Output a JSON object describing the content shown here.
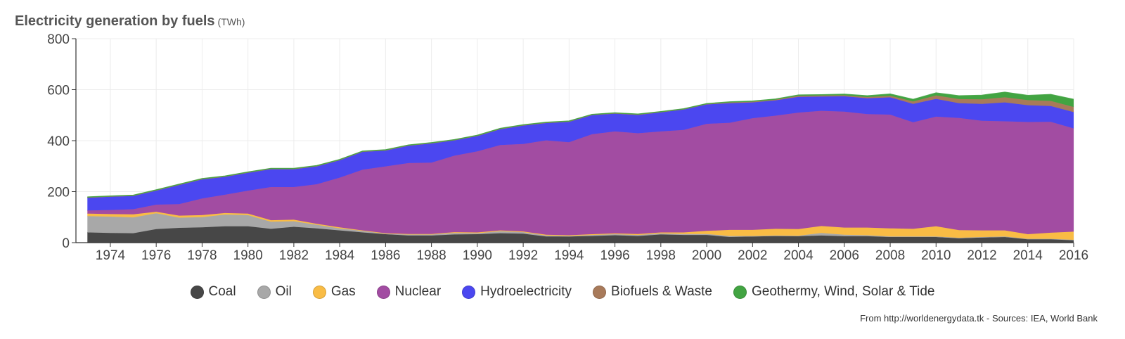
{
  "title": "Electricity generation by fuels",
  "unit": "(TWh)",
  "source": "From http://worldenergydata.tk - Sources: IEA, World Bank",
  "chart_data": {
    "type": "area",
    "stacked": true,
    "x": [
      1973,
      1974,
      1975,
      1976,
      1977,
      1978,
      1979,
      1980,
      1981,
      1982,
      1983,
      1984,
      1985,
      1986,
      1987,
      1988,
      1989,
      1990,
      1991,
      1992,
      1993,
      1994,
      1995,
      1996,
      1997,
      1998,
      1999,
      2000,
      2001,
      2002,
      2003,
      2004,
      2005,
      2006,
      2007,
      2008,
      2009,
      2010,
      2011,
      2012,
      2013,
      2014,
      2015,
      2016
    ],
    "xlim": [
      1972.5,
      2016
    ],
    "ylim": [
      0,
      800
    ],
    "yticks": [
      0,
      200,
      400,
      600,
      800
    ],
    "xticks": [
      1974,
      1976,
      1978,
      1980,
      1982,
      1984,
      1986,
      1988,
      1990,
      1992,
      1994,
      1996,
      1998,
      2000,
      2002,
      2004,
      2006,
      2008,
      2010,
      2012,
      2014,
      2016
    ],
    "grid": true,
    "legend_position": "bottom",
    "series": [
      {
        "name": "Coal",
        "color": "#474747",
        "values": [
          40,
          38,
          37,
          53,
          58,
          60,
          64,
          64,
          54,
          62,
          56,
          48,
          40,
          33,
          28,
          28,
          32,
          33,
          37,
          35,
          24,
          24,
          26,
          29,
          26,
          32,
          30,
          30,
          22,
          24,
          26,
          25,
          28,
          25,
          25,
          22,
          22,
          22,
          17,
          20,
          22,
          14,
          14,
          10
        ]
      },
      {
        "name": "Oil",
        "color": "#a8a8a8",
        "values": [
          64,
          64,
          62,
          62,
          40,
          40,
          46,
          44,
          28,
          22,
          14,
          8,
          6,
          2,
          4,
          4,
          6,
          4,
          8,
          6,
          4,
          2,
          4,
          4,
          4,
          4,
          4,
          4,
          4,
          2,
          2,
          2,
          10,
          6,
          4,
          2,
          2,
          2,
          2,
          2,
          2,
          1,
          1,
          1
        ]
      },
      {
        "name": "Gas",
        "color": "#f9bc45",
        "values": [
          10,
          10,
          12,
          6,
          8,
          8,
          6,
          6,
          6,
          6,
          4,
          4,
          2,
          2,
          2,
          2,
          3,
          3,
          3,
          3,
          3,
          3,
          3,
          3,
          4,
          4,
          6,
          12,
          24,
          24,
          26,
          26,
          27,
          28,
          30,
          32,
          30,
          40,
          30,
          26,
          24,
          18,
          24,
          32
        ]
      },
      {
        "name": "Nuclear",
        "color": "#a24ca2",
        "values": [
          12,
          16,
          20,
          28,
          45,
          65,
          72,
          90,
          130,
          128,
          155,
          195,
          238,
          262,
          278,
          280,
          300,
          318,
          335,
          343,
          370,
          365,
          392,
          400,
          395,
          396,
          402,
          420,
          420,
          438,
          444,
          457,
          452,
          455,
          445,
          446,
          418,
          430,
          440,
          430,
          428,
          440,
          435,
          405
        ]
      },
      {
        "name": "Hydroelectricity",
        "color": "#4b47f0",
        "values": [
          50,
          52,
          52,
          55,
          75,
          75,
          70,
          70,
          70,
          70,
          70,
          68,
          70,
          62,
          68,
          75,
          60,
          60,
          62,
          72,
          68,
          80,
          75,
          70,
          72,
          75,
          80,
          76,
          77,
          62,
          60,
          62,
          56,
          60,
          62,
          68,
          72,
          70,
          58,
          66,
          74,
          66,
          62,
          64
        ]
      },
      {
        "name": "Biofuels & Waste",
        "color": "#a87a5a",
        "values": [
          2,
          2,
          2,
          2,
          2,
          2,
          2,
          2,
          2,
          2,
          2,
          2,
          2,
          2,
          2,
          2,
          2,
          2,
          2,
          2,
          2,
          2,
          2,
          2,
          2,
          2,
          2,
          2,
          3,
          3,
          3,
          4,
          4,
          4,
          5,
          6,
          10,
          13,
          16,
          18,
          20,
          20,
          20,
          20
        ]
      },
      {
        "name": "Geothermy, Wind, Solar & Tide",
        "color": "#42a442",
        "values": [
          1,
          1,
          1,
          1,
          1,
          1,
          1,
          1,
          1,
          1,
          1,
          1,
          1,
          1,
          1,
          1,
          1,
          1,
          1,
          1,
          1,
          1,
          1,
          1,
          1,
          1,
          1,
          1,
          2,
          2,
          2,
          3,
          3,
          4,
          5,
          7,
          8,
          10,
          13,
          16,
          20,
          18,
          25,
          30
        ]
      }
    ]
  }
}
